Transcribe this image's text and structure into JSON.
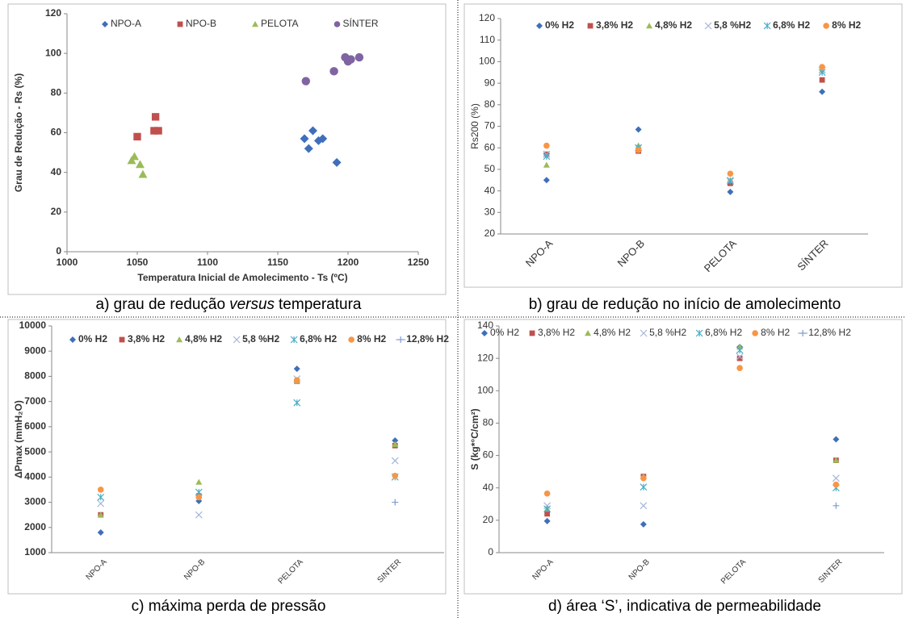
{
  "chart_data": [
    {
      "type": "scatter",
      "xlabel": "Temperatura Inicial de Amolecimento - Ts (ºC)",
      "ylabel": "Grau de Redução - Rs (%)",
      "xlim": [
        1000,
        1250
      ],
      "xticks": [
        1000,
        1050,
        1100,
        1150,
        1200,
        1250
      ],
      "ylim": [
        0,
        120
      ],
      "yticks": [
        0,
        20,
        40,
        60,
        80,
        100,
        120
      ],
      "grid": false,
      "legend": "top",
      "series": [
        {
          "name": "NPO-A",
          "color": "#3f6fba",
          "marker": "diamond",
          "x": [
            1169,
            1175,
            1172,
            1179,
            1182,
            1192
          ],
          "values": [
            57,
            61,
            52,
            56,
            57,
            45
          ]
        },
        {
          "name": "NPO-B",
          "color": "#c0504d",
          "marker": "square",
          "x": [
            1050,
            1063,
            1062,
            1065
          ],
          "values": [
            58,
            68,
            61,
            61
          ]
        },
        {
          "name": "PELOTA",
          "color": "#9bbb59",
          "marker": "triangle",
          "x": [
            1048,
            1046,
            1052,
            1054
          ],
          "values": [
            48,
            46,
            44,
            39
          ]
        },
        {
          "name": "SÍNTER",
          "color": "#8064a2",
          "marker": "circle",
          "x": [
            1170,
            1190,
            1198,
            1200,
            1202,
            1208
          ],
          "values": [
            86,
            91,
            98,
            96,
            97,
            98
          ]
        }
      ],
      "caption": [
        "a) grau de redução",
        "versus",
        "temperatura"
      ]
    },
    {
      "type": "dot",
      "ylabel": "Rs200 (%)",
      "categories": [
        "NPO-A",
        "NPO-B",
        "PELOTA",
        "SÍNTER"
      ],
      "ylim": [
        20,
        120
      ],
      "yticks": [
        20,
        30,
        40,
        50,
        60,
        70,
        80,
        90,
        100,
        110,
        120
      ],
      "grid": false,
      "legend": "top",
      "series": [
        {
          "name": "0% H2",
          "color": "#3f6fba",
          "marker": "diamond",
          "values": [
            45,
            68.5,
            39.5,
            86
          ]
        },
        {
          "name": "3,8% H2",
          "color": "#c0504d",
          "marker": "square",
          "values": [
            57,
            58.5,
            43.5,
            91.5
          ]
        },
        {
          "name": "4,8% H2",
          "color": "#9bbb59",
          "marker": "triangle",
          "values": [
            52,
            61,
            45,
            96
          ]
        },
        {
          "name": "5,8 %H2",
          "color": "#a5b6d9",
          "marker": "x",
          "values": [
            57,
            60,
            45,
            96
          ]
        },
        {
          "name": "6,8% H2",
          "color": "#4bacc6",
          "marker": "asterisk",
          "values": [
            56,
            60,
            44.5,
            95
          ]
        },
        {
          "name": "8% H2",
          "color": "#f79646",
          "marker": "circle",
          "values": [
            61,
            59,
            48,
            97.5
          ]
        }
      ],
      "caption": "b) grau de redução no início de amolecimento"
    },
    {
      "type": "dot",
      "ylabel": "ΔPmax (mmH₂O)",
      "categories": [
        "NPO-A",
        "NPO-B",
        "PELOTA",
        "SINTER"
      ],
      "ylim": [
        1000,
        10000
      ],
      "yticks": [
        1000,
        2000,
        3000,
        4000,
        5000,
        6000,
        7000,
        8000,
        9000,
        10000
      ],
      "grid": false,
      "legend": "top",
      "series": [
        {
          "name": "0% H2",
          "color": "#3f6fba",
          "marker": "diamond",
          "values": [
            1800,
            3050,
            8300,
            5450
          ]
        },
        {
          "name": "3,8% H2",
          "color": "#c0504d",
          "marker": "square",
          "values": [
            2500,
            3250,
            7800,
            5250
          ]
        },
        {
          "name": "4,8% H2",
          "color": "#9bbb59",
          "marker": "triangle",
          "values": [
            2500,
            3800,
            7800,
            5300
          ]
        },
        {
          "name": "5,8 %H2",
          "color": "#a5b6d9",
          "marker": "x",
          "values": [
            2950,
            2500,
            7900,
            4650
          ]
        },
        {
          "name": "6,8% H2",
          "color": "#4bacc6",
          "marker": "asterisk",
          "values": [
            3200,
            3400,
            6950,
            4000
          ]
        },
        {
          "name": "8% H2",
          "color": "#f79646",
          "marker": "circle",
          "values": [
            3500,
            3200,
            7850,
            4050
          ]
        },
        {
          "name": "12,8% H2",
          "color": "#7f9cd0",
          "marker": "plus",
          "values": [
            null,
            null,
            null,
            3000
          ]
        }
      ],
      "caption": "c) máxima perda de pressão"
    },
    {
      "type": "dot",
      "ylabel": "S (kg*°C/cm²)",
      "categories": [
        "NPO-A",
        "NPO-B",
        "PELOTA",
        "SINTER"
      ],
      "ylim": [
        0,
        140
      ],
      "yticks": [
        0,
        20,
        40,
        60,
        80,
        100,
        120,
        140
      ],
      "grid": false,
      "legend": "top",
      "series": [
        {
          "name": "0% H2",
          "color": "#3f6fba",
          "marker": "diamond",
          "values": [
            19.5,
            17.5,
            127,
            70
          ]
        },
        {
          "name": "3,8% H2",
          "color": "#c0504d",
          "marker": "square",
          "values": [
            24,
            47,
            120,
            57
          ]
        },
        {
          "name": "4,8% H2",
          "color": "#9bbb59",
          "marker": "triangle",
          "values": [
            27,
            47,
            127,
            57
          ]
        },
        {
          "name": "5,8 %H2",
          "color": "#a5b6d9",
          "marker": "x",
          "values": [
            29,
            29,
            121,
            46
          ]
        },
        {
          "name": "6,8% H2",
          "color": "#4bacc6",
          "marker": "asterisk",
          "values": [
            27,
            40.5,
            125,
            40
          ]
        },
        {
          "name": "8% H2",
          "color": "#f79646",
          "marker": "circle",
          "values": [
            36.5,
            46,
            114,
            42
          ]
        },
        {
          "name": "12,8% H2",
          "color": "#7f9cd0",
          "marker": "plus",
          "values": [
            null,
            null,
            null,
            29
          ]
        }
      ],
      "caption": "d) área ‘S’, indicativa de permeabilidade"
    }
  ]
}
